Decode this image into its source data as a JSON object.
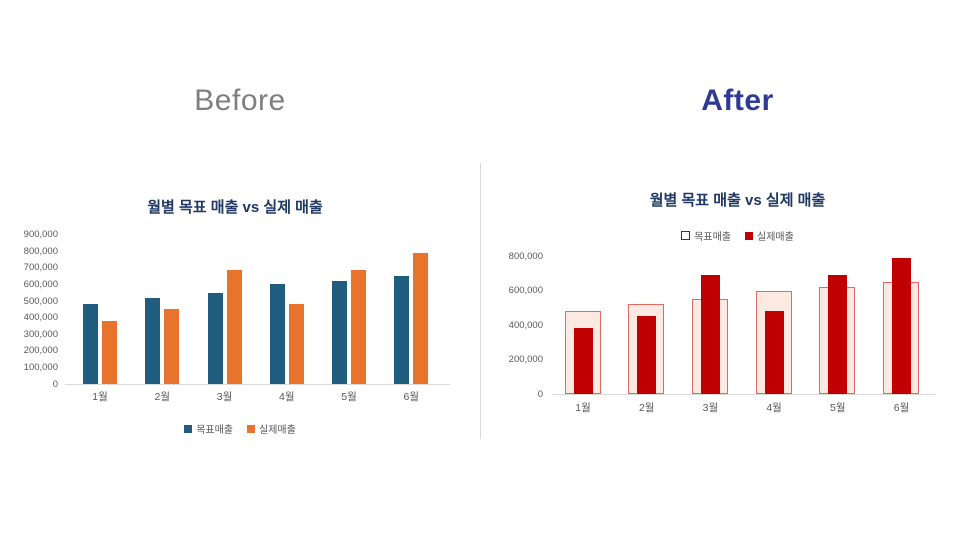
{
  "headers": {
    "before": "Before",
    "after": "After"
  },
  "colors": {
    "before_heading": "#7F7F7F",
    "after_heading": "#2E3A94",
    "chart_title": "#1F3864",
    "axis_text": "#595959",
    "axis_line": "#D9D9D9",
    "divider": "#D9D9D9",
    "target_blue": "#1F5C7E",
    "actual_orange": "#E8732C",
    "target_light_fill": "#FCE9E2",
    "target_light_border": "#DD6B5F",
    "actual_red": "#C00000"
  },
  "chart_data": [
    {
      "id": "before-chart",
      "type": "bar",
      "style": "grouped",
      "title": "월별 목표 매출 vs 실제 매출",
      "categories": [
        "1월",
        "2월",
        "3월",
        "4월",
        "5월",
        "6월"
      ],
      "series": [
        {
          "name": "목표매출",
          "values": [
            480000,
            520000,
            550000,
            600000,
            620000,
            650000
          ],
          "color": "#1F5C7E"
        },
        {
          "name": "실제매출",
          "values": [
            380000,
            450000,
            690000,
            480000,
            690000,
            790000
          ],
          "color": "#E8732C"
        }
      ],
      "ylim": [
        0,
        900000
      ],
      "y_ticks": [
        "0",
        "100,000",
        "200,000",
        "300,000",
        "400,000",
        "500,000",
        "600,000",
        "700,000",
        "800,000",
        "900,000"
      ],
      "xlabel": "",
      "ylabel": "",
      "gridlines": false,
      "legend_position": "bottom"
    },
    {
      "id": "after-chart",
      "type": "bar",
      "style": "overlay",
      "title": "월별 목표 매출 vs 실제 매출",
      "categories": [
        "1월",
        "2월",
        "3월",
        "4월",
        "5월",
        "6월"
      ],
      "series": [
        {
          "name": "목표매출",
          "values": [
            480000,
            520000,
            550000,
            600000,
            620000,
            650000
          ],
          "fill": "#FCE9E2",
          "border": "#DD6B5F"
        },
        {
          "name": "실제매출",
          "values": [
            380000,
            450000,
            690000,
            480000,
            690000,
            790000
          ],
          "color": "#C00000"
        }
      ],
      "ylim": [
        0,
        800000
      ],
      "y_ticks": [
        "0",
        "200,000",
        "400,000",
        "600,000",
        "800,000"
      ],
      "xlabel": "",
      "ylabel": "",
      "gridlines": false,
      "legend_position": "top"
    }
  ]
}
